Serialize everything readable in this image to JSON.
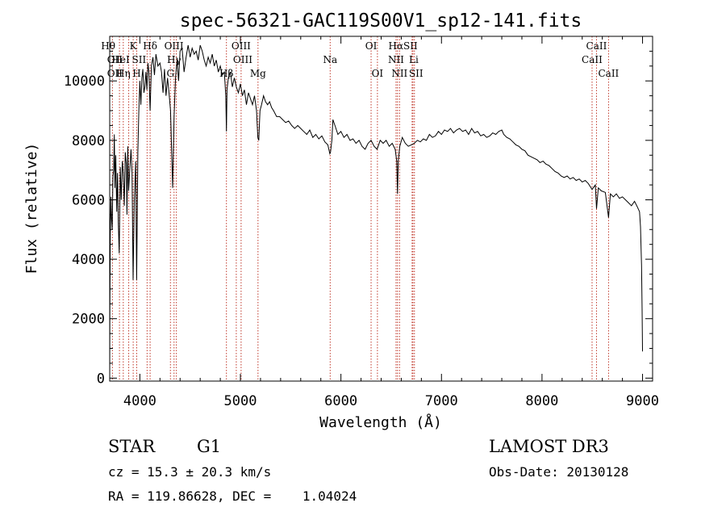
{
  "chart_data": {
    "type": "line",
    "title": "spec-56321-GAC119S00V1_sp12-141.fits",
    "xlabel": "Wavelength (Å)",
    "ylabel": "Flux (relative)",
    "xlim": [
      3700,
      9100
    ],
    "ylim": [
      -100,
      11500
    ],
    "xticks": [
      4000,
      5000,
      6000,
      7000,
      8000,
      9000
    ],
    "yticks": [
      0,
      2000,
      4000,
      6000,
      8000,
      10000
    ],
    "series": [
      {
        "name": "flux",
        "points": [
          [
            3700,
            0
          ],
          [
            3702,
            2300
          ],
          [
            3706,
            4800
          ],
          [
            3712,
            6100
          ],
          [
            3718,
            5400
          ],
          [
            3725,
            5000
          ],
          [
            3732,
            6800
          ],
          [
            3740,
            7000
          ],
          [
            3746,
            8200
          ],
          [
            3752,
            6400
          ],
          [
            3760,
            7500
          ],
          [
            3770,
            5600
          ],
          [
            3778,
            6900
          ],
          [
            3786,
            5200
          ],
          [
            3795,
            4200
          ],
          [
            3805,
            7100
          ],
          [
            3815,
            6000
          ],
          [
            3825,
            7300
          ],
          [
            3835,
            6900
          ],
          [
            3845,
            5800
          ],
          [
            3855,
            7600
          ],
          [
            3865,
            7200
          ],
          [
            3872,
            5500
          ],
          [
            3880,
            7800
          ],
          [
            3888,
            6300
          ],
          [
            3900,
            7000
          ],
          [
            3912,
            7700
          ],
          [
            3922,
            6900
          ],
          [
            3933,
            3300
          ],
          [
            3945,
            6000
          ],
          [
            3958,
            7300
          ],
          [
            3968,
            3300
          ],
          [
            3980,
            7600
          ],
          [
            3990,
            9000
          ],
          [
            4000,
            10000
          ],
          [
            4010,
            9200
          ],
          [
            4020,
            10100
          ],
          [
            4030,
            10400
          ],
          [
            4040,
            9600
          ],
          [
            4050,
            9800
          ],
          [
            4060,
            10300
          ],
          [
            4070,
            9700
          ],
          [
            4080,
            10600
          ],
          [
            4090,
            10300
          ],
          [
            4102,
            9000
          ],
          [
            4115,
            10500
          ],
          [
            4130,
            10800
          ],
          [
            4145,
            10200
          ],
          [
            4160,
            10900
          ],
          [
            4180,
            10500
          ],
          [
            4200,
            10600
          ],
          [
            4215,
            10300
          ],
          [
            4230,
            9600
          ],
          [
            4245,
            10400
          ],
          [
            4260,
            9500
          ],
          [
            4275,
            10100
          ],
          [
            4290,
            9600
          ],
          [
            4305,
            9000
          ],
          [
            4315,
            7800
          ],
          [
            4326,
            6400
          ],
          [
            4340,
            8800
          ],
          [
            4355,
            10100
          ],
          [
            4370,
            10700
          ],
          [
            4385,
            10000
          ],
          [
            4400,
            11000
          ],
          [
            4420,
            11100
          ],
          [
            4440,
            10300
          ],
          [
            4460,
            10800
          ],
          [
            4480,
            11200
          ],
          [
            4500,
            10800
          ],
          [
            4520,
            11100
          ],
          [
            4540,
            10900
          ],
          [
            4560,
            11000
          ],
          [
            4580,
            10700
          ],
          [
            4600,
            11200
          ],
          [
            4620,
            11000
          ],
          [
            4640,
            10700
          ],
          [
            4660,
            10500
          ],
          [
            4680,
            10800
          ],
          [
            4700,
            10600
          ],
          [
            4720,
            10900
          ],
          [
            4740,
            10500
          ],
          [
            4760,
            10700
          ],
          [
            4780,
            10300
          ],
          [
            4800,
            10500
          ],
          [
            4820,
            10200
          ],
          [
            4840,
            10300
          ],
          [
            4855,
            9500
          ],
          [
            4861,
            8300
          ],
          [
            4867,
            9700
          ],
          [
            4880,
            10100
          ],
          [
            4900,
            10300
          ],
          [
            4920,
            9800
          ],
          [
            4940,
            10100
          ],
          [
            4960,
            9800
          ],
          [
            4980,
            9600
          ],
          [
            5000,
            9900
          ],
          [
            5020,
            9500
          ],
          [
            5040,
            9700
          ],
          [
            5060,
            9200
          ],
          [
            5080,
            9600
          ],
          [
            5100,
            9400
          ],
          [
            5120,
            9200
          ],
          [
            5140,
            9500
          ],
          [
            5160,
            9000
          ],
          [
            5173,
            8100
          ],
          [
            5183,
            8000
          ],
          [
            5195,
            9000
          ],
          [
            5210,
            9200
          ],
          [
            5230,
            9500
          ],
          [
            5250,
            9300
          ],
          [
            5270,
            9200
          ],
          [
            5290,
            9300
          ],
          [
            5310,
            9100
          ],
          [
            5330,
            9000
          ],
          [
            5360,
            8800
          ],
          [
            5390,
            8800
          ],
          [
            5420,
            8700
          ],
          [
            5450,
            8600
          ],
          [
            5480,
            8650
          ],
          [
            5510,
            8500
          ],
          [
            5540,
            8400
          ],
          [
            5570,
            8500
          ],
          [
            5600,
            8400
          ],
          [
            5630,
            8300
          ],
          [
            5660,
            8200
          ],
          [
            5690,
            8350
          ],
          [
            5720,
            8100
          ],
          [
            5750,
            8200
          ],
          [
            5780,
            8050
          ],
          [
            5810,
            8150
          ],
          [
            5840,
            7950
          ],
          [
            5870,
            7850
          ],
          [
            5890,
            7550
          ],
          [
            5896,
            7600
          ],
          [
            5910,
            8000
          ],
          [
            5920,
            8700
          ],
          [
            5940,
            8500
          ],
          [
            5970,
            8200
          ],
          [
            6000,
            8300
          ],
          [
            6030,
            8100
          ],
          [
            6060,
            8200
          ],
          [
            6090,
            8000
          ],
          [
            6120,
            8050
          ],
          [
            6150,
            7900
          ],
          [
            6180,
            8000
          ],
          [
            6210,
            7800
          ],
          [
            6240,
            7700
          ],
          [
            6270,
            7900
          ],
          [
            6300,
            8000
          ],
          [
            6330,
            7800
          ],
          [
            6360,
            7700
          ],
          [
            6390,
            8000
          ],
          [
            6420,
            7900
          ],
          [
            6450,
            8000
          ],
          [
            6480,
            7800
          ],
          [
            6510,
            7900
          ],
          [
            6540,
            7700
          ],
          [
            6555,
            7300
          ],
          [
            6563,
            6200
          ],
          [
            6570,
            7300
          ],
          [
            6585,
            7800
          ],
          [
            6610,
            8100
          ],
          [
            6640,
            7900
          ],
          [
            6670,
            7800
          ],
          [
            6700,
            7850
          ],
          [
            6730,
            7900
          ],
          [
            6760,
            8000
          ],
          [
            6790,
            7950
          ],
          [
            6820,
            8050
          ],
          [
            6850,
            8000
          ],
          [
            6880,
            8200
          ],
          [
            6910,
            8100
          ],
          [
            6940,
            8150
          ],
          [
            6970,
            8300
          ],
          [
            7000,
            8200
          ],
          [
            7030,
            8350
          ],
          [
            7060,
            8300
          ],
          [
            7090,
            8400
          ],
          [
            7120,
            8250
          ],
          [
            7150,
            8350
          ],
          [
            7180,
            8400
          ],
          [
            7210,
            8300
          ],
          [
            7240,
            8350
          ],
          [
            7270,
            8200
          ],
          [
            7300,
            8400
          ],
          [
            7330,
            8250
          ],
          [
            7360,
            8300
          ],
          [
            7390,
            8150
          ],
          [
            7420,
            8200
          ],
          [
            7450,
            8100
          ],
          [
            7480,
            8150
          ],
          [
            7510,
            8250
          ],
          [
            7540,
            8200
          ],
          [
            7570,
            8300
          ],
          [
            7600,
            8350
          ],
          [
            7620,
            8200
          ],
          [
            7650,
            8100
          ],
          [
            7680,
            8050
          ],
          [
            7710,
            7950
          ],
          [
            7740,
            7850
          ],
          [
            7770,
            7800
          ],
          [
            7800,
            7700
          ],
          [
            7830,
            7650
          ],
          [
            7860,
            7500
          ],
          [
            7890,
            7450
          ],
          [
            7920,
            7400
          ],
          [
            7950,
            7350
          ],
          [
            7980,
            7250
          ],
          [
            8010,
            7300
          ],
          [
            8040,
            7200
          ],
          [
            8070,
            7150
          ],
          [
            8100,
            7050
          ],
          [
            8130,
            6950
          ],
          [
            8160,
            6900
          ],
          [
            8190,
            6800
          ],
          [
            8220,
            6750
          ],
          [
            8250,
            6800
          ],
          [
            8280,
            6700
          ],
          [
            8310,
            6750
          ],
          [
            8340,
            6650
          ],
          [
            8370,
            6700
          ],
          [
            8400,
            6600
          ],
          [
            8430,
            6650
          ],
          [
            8460,
            6550
          ],
          [
            8498,
            6350
          ],
          [
            8530,
            6500
          ],
          [
            8542,
            5700
          ],
          [
            8560,
            6400
          ],
          [
            8590,
            6300
          ],
          [
            8630,
            6250
          ],
          [
            8662,
            5400
          ],
          [
            8680,
            6200
          ],
          [
            8710,
            6100
          ],
          [
            8740,
            6200
          ],
          [
            8770,
            6050
          ],
          [
            8800,
            6100
          ],
          [
            8830,
            6000
          ],
          [
            8860,
            5900
          ],
          [
            8890,
            5800
          ],
          [
            8920,
            5950
          ],
          [
            8950,
            5750
          ],
          [
            8970,
            5600
          ],
          [
            8980,
            5100
          ],
          [
            8990,
            3800
          ],
          [
            8996,
            2300
          ],
          [
            9000,
            900
          ]
        ]
      }
    ],
    "lines": [
      {
        "label": "Hθ",
        "x": 3797,
        "row": 0,
        "dx": -14
      },
      {
        "label": "OII",
        "x": 3727,
        "row": 1,
        "dx": 3
      },
      {
        "label": "OII",
        "x": 3727,
        "row": 2,
        "dx": 3
      },
      {
        "label": "HeI",
        "x": 3889,
        "row": 1,
        "dx": -10
      },
      {
        "label": "Hη",
        "x": 3835,
        "row": 2,
        "dx": 0
      },
      {
        "label": "K",
        "x": 3933.7,
        "row": 0,
        "dx": 0
      },
      {
        "label": "H",
        "x": 3968.5,
        "row": 2,
        "dx": 0
      },
      {
        "label": "SII",
        "x": 4072,
        "row": 1,
        "dx": -10
      },
      {
        "label": "Hδ",
        "x": 4102,
        "row": 0,
        "dx": 0
      },
      {
        "label": "OIII",
        "x": 4363,
        "row": 0,
        "dx": -3
      },
      {
        "label": "Hγ",
        "x": 4340,
        "row": 1,
        "dx": 0
      },
      {
        "label": "G",
        "x": 4304,
        "row": 2,
        "dx": 0
      },
      {
        "label": "OIII",
        "x": 5007,
        "row": 0,
        "dx": 0
      },
      {
        "label": "OIII",
        "x": 4959,
        "row": 1,
        "dx": 8
      },
      {
        "label": "Hβ",
        "x": 4861,
        "row": 2,
        "dx": 0
      },
      {
        "label": "Mg",
        "x": 5175,
        "row": 2,
        "dx": 0
      },
      {
        "label": "Na",
        "x": 5893,
        "row": 1,
        "dx": 0
      },
      {
        "label": "OI",
        "x": 6300,
        "row": 0,
        "dx": 0
      },
      {
        "label": "OI",
        "x": 6363,
        "row": 2,
        "dx": 0
      },
      {
        "label": "Hα",
        "x": 6563,
        "row": 0,
        "dx": -2
      },
      {
        "label": "NII",
        "x": 6548,
        "row": 1,
        "dx": 0
      },
      {
        "label": "NII",
        "x": 6583,
        "row": 2,
        "dx": 0
      },
      {
        "label": "SII",
        "x": 6716,
        "row": 0,
        "dx": -3
      },
      {
        "label": "Li",
        "x": 6708,
        "row": 1,
        "dx": 2
      },
      {
        "label": "SII",
        "x": 6731,
        "row": 2,
        "dx": 2
      },
      {
        "label": "CaII",
        "x": 8498,
        "row": 1,
        "dx": 0
      },
      {
        "label": "CaII",
        "x": 8542,
        "row": 0,
        "dx": 0
      },
      {
        "label": "CaII",
        "x": 8662,
        "row": 2,
        "dx": 0
      }
    ]
  },
  "info": {
    "object_class": "STAR",
    "subclass": "G1",
    "survey": "LAMOST DR3",
    "cz": "cz = 15.3 ± 20.3 km/s",
    "obs_date": "Obs-Date: 20130128",
    "radec": "RA = 119.86628, DEC =    1.04024"
  },
  "colors": {
    "line_marker": "#c0392b",
    "spectrum": "#000000",
    "axes": "#000000"
  }
}
